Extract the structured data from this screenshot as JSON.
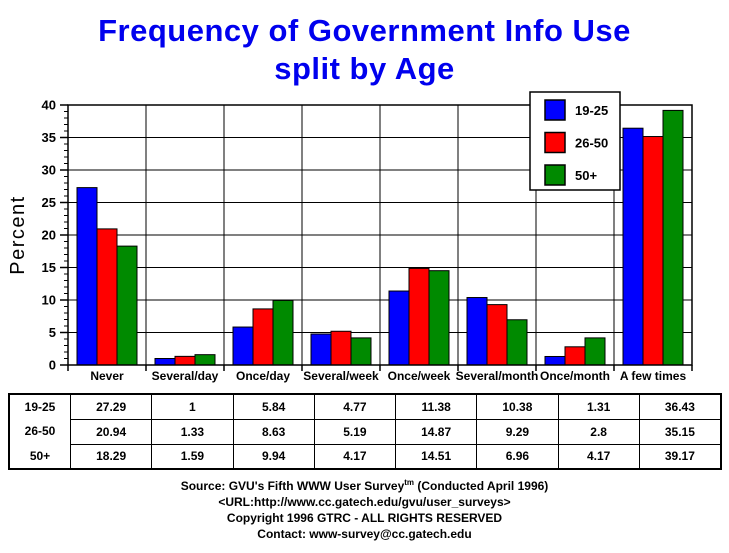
{
  "title": {
    "line1": "Frequency of Government Info Use",
    "line2": "split by Age"
  },
  "colors": {
    "title_blue": "#0000EE",
    "series_blue": "#0000FF",
    "series_red": "#FF0000",
    "series_green": "#008A00",
    "axis_black": "#000000"
  },
  "chart_data": {
    "type": "bar",
    "title": "Frequency of Government Info Use split by Age",
    "categories": [
      "Never",
      "Several/day",
      "Once/day",
      "Several/week",
      "Once/week",
      "Several/month",
      "Once/month",
      "A few times"
    ],
    "series": [
      {
        "name": "19-25",
        "color": "#0000FF",
        "values": [
          27.29,
          1,
          5.84,
          4.77,
          11.38,
          10.38,
          1.31,
          36.43
        ]
      },
      {
        "name": "26-50",
        "color": "#FF0000",
        "values": [
          20.94,
          1.33,
          8.63,
          5.19,
          14.87,
          9.29,
          2.8,
          35.15
        ]
      },
      {
        "name": "50+",
        "color": "#008A00",
        "values": [
          18.29,
          1.59,
          9.94,
          4.17,
          14.51,
          6.96,
          4.17,
          39.17
        ]
      }
    ],
    "xlabel": "",
    "ylabel": "Percent",
    "ylim": [
      0,
      40
    ],
    "ytick_step": 5,
    "yminor_step": 1,
    "grid": true,
    "legend_position": "top-right",
    "legend_entries": [
      "19-25",
      "26-50",
      "50+"
    ]
  },
  "table": {
    "row_headers": [
      "19-25",
      "26-50",
      "50+"
    ],
    "column_headers": [
      "Never",
      "Several/day",
      "Once/day",
      "Several/week",
      "Once/week",
      "Several/month",
      "Once/month",
      "A few times"
    ],
    "rows": [
      [
        "27.29",
        "1",
        "5.84",
        "4.77",
        "11.38",
        "10.38",
        "1.31",
        "36.43"
      ],
      [
        "20.94",
        "1.33",
        "8.63",
        "5.19",
        "14.87",
        "9.29",
        "2.8",
        "35.15"
      ],
      [
        "18.29",
        "1.59",
        "9.94",
        "4.17",
        "14.51",
        "6.96",
        "4.17",
        "39.17"
      ]
    ]
  },
  "footer": {
    "source_prefix": "Source: GVU's Fifth WWW User Survey",
    "source_sup": "tm",
    "source_suffix": " (Conducted April 1996)",
    "url_line": "<URL:http://www.cc.gatech.edu/gvu/user_surveys>",
    "copyright_line": "Copyright 1996 GTRC -  ALL RIGHTS RESERVED",
    "contact_line": "Contact: www-survey@cc.gatech.edu"
  }
}
